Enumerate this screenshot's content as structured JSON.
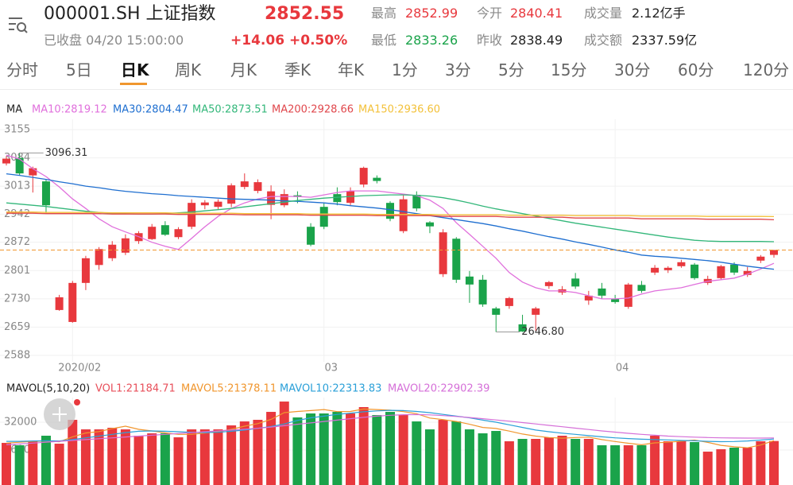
{
  "header": {
    "title": "000001.SH 上证指数",
    "price": "2852.55",
    "status": "已收盘 04/20 15:00:00",
    "change": "+14.06",
    "change_pct": "+0.50%",
    "stats": [
      {
        "label": "最高",
        "value": "2852.99"
      },
      {
        "label": "今开",
        "value": "2840.41"
      },
      {
        "label": "成交量",
        "value": "2.12亿手"
      },
      {
        "label": "最低",
        "value": "2833.26"
      },
      {
        "label": "昨收",
        "value": "2838.49"
      },
      {
        "label": "成交额",
        "value": "2337.59亿"
      }
    ]
  },
  "tabs": [
    {
      "label": "分时"
    },
    {
      "label": "5日"
    },
    {
      "label": "日K",
      "active": true
    },
    {
      "label": "周K"
    },
    {
      "label": "月K"
    },
    {
      "label": "季K"
    },
    {
      "label": "年K"
    },
    {
      "label": "1分"
    },
    {
      "label": "3分"
    },
    {
      "label": "5分"
    },
    {
      "label": "15分"
    },
    {
      "label": "30分"
    },
    {
      "label": "60分"
    },
    {
      "label": "120分"
    }
  ],
  "chart_data": [
    {
      "type": "candlestick",
      "legend_title": "MA",
      "categories": [
        null,
        null,
        null,
        null,
        null,
        "2020/02",
        null,
        null,
        null,
        null,
        null,
        null,
        null,
        null,
        null,
        null,
        null,
        null,
        null,
        null,
        null,
        null,
        null,
        null,
        "03",
        null,
        null,
        null,
        null,
        null,
        null,
        null,
        null,
        null,
        null,
        null,
        null,
        null,
        null,
        null,
        null,
        null,
        null,
        null,
        null,
        null,
        "04",
        null,
        null,
        null,
        null,
        null,
        null,
        null,
        null,
        null,
        null,
        null,
        null
      ],
      "open": [
        3070,
        3084,
        3040,
        3025,
        2702,
        2672,
        2770,
        2815,
        2832,
        2846,
        2875,
        2880,
        2915,
        2885,
        2911,
        2965,
        2961,
        2969,
        3011,
        3001,
        2966,
        2965,
        2990,
        2911,
        2961,
        2993,
        2971,
        3017,
        3034,
        2971,
        2900,
        2991,
        2922,
        2792,
        2881,
        2786,
        2778,
        2706,
        2712,
        2666,
        2690,
        2762,
        2746,
        2781,
        2726,
        2756,
        2730,
        2710,
        2765,
        2796,
        2802,
        2812,
        2816,
        2770,
        2782,
        2816,
        2790,
        2826,
        2840.41
      ],
      "high": [
        3088,
        3096.31,
        3062,
        3030,
        2740,
        2775,
        2838,
        2860,
        2875,
        2892,
        2900,
        2918,
        2925,
        2910,
        2980,
        2978,
        2980,
        3020,
        3045,
        3030,
        3015,
        3005,
        3000,
        2920,
        2970,
        3010,
        3010,
        3062,
        3040,
        2975,
        2990,
        3000,
        2925,
        2905,
        2885,
        2800,
        2790,
        2710,
        2735,
        2690,
        2710,
        2775,
        2762,
        2795,
        2750,
        2770,
        2740,
        2770,
        2775,
        2815,
        2812,
        2828,
        2820,
        2788,
        2815,
        2822,
        2810,
        2840,
        2852.99
      ],
      "low": [
        3065,
        3040,
        2997,
        2945,
        2700,
        2670,
        2752,
        2803,
        2825,
        2840,
        2868,
        2878,
        2888,
        2880,
        2905,
        2955,
        2955,
        2960,
        3005,
        2995,
        2930,
        2960,
        2970,
        2862,
        2905,
        2965,
        2965,
        3010,
        3020,
        2925,
        2895,
        2950,
        2895,
        2785,
        2770,
        2720,
        2710,
        2646.8,
        2705,
        2647,
        2650,
        2755,
        2740,
        2755,
        2715,
        2730,
        2718,
        2705,
        2745,
        2790,
        2795,
        2808,
        2778,
        2765,
        2778,
        2790,
        2785,
        2820,
        2833.26
      ],
      "close": [
        3082,
        3045,
        3058,
        2965,
        2734,
        2770,
        2832,
        2855,
        2866,
        2882,
        2895,
        2911,
        2891,
        2905,
        2971,
        2972,
        2974,
        3015,
        3025,
        3023,
        3000,
        2993,
        2986,
        2866,
        2911,
        2973,
        3001,
        3059,
        3026,
        2931,
        2980,
        2957,
        2912,
        2897,
        2778,
        2766,
        2716,
        2690,
        2732,
        2648,
        2706,
        2772,
        2754,
        2761,
        2738,
        2738,
        2722,
        2766,
        2750,
        2808,
        2808,
        2822,
        2782,
        2780,
        2812,
        2796,
        2800,
        2836,
        2852.55
      ],
      "up_color": "#e8383d",
      "down_color": "#1aa34a",
      "last_price_color": "#f0962e",
      "ylim": [
        2588,
        3155
      ],
      "yticks": [
        2588,
        2659,
        2730,
        2801,
        2872,
        2942,
        3013,
        3084,
        3155
      ],
      "grid": true,
      "series": [
        {
          "name": "MA10:2819.12",
          "color": "#e070dc",
          "values": [
            3091,
            3081,
            3057,
            3037,
            3011,
            2981,
            2957,
            2931,
            2911,
            2898,
            2886,
            2872,
            2862,
            2854,
            2882,
            2911,
            2937,
            2957,
            2971,
            2981,
            2987,
            2987,
            2987,
            2985,
            2991,
            2997,
            3001,
            3001,
            3001,
            2997,
            2993,
            2989,
            2978,
            2957,
            2921,
            2892,
            2862,
            2832,
            2796,
            2772,
            2758,
            2750,
            2750,
            2746,
            2738,
            2730,
            2730,
            2732,
            2742,
            2750,
            2754,
            2758,
            2766,
            2774,
            2778,
            2782,
            2792,
            2805,
            2819.12
          ]
        },
        {
          "name": "MA30:2804.47",
          "color": "#1f6fd0",
          "values": [
            3044,
            3040,
            3035,
            3030,
            3024,
            3019,
            3013,
            3009,
            3004,
            3000,
            2997,
            2994,
            2992,
            2989,
            2987,
            2985,
            2983,
            2981,
            2980,
            2979,
            2978,
            2976,
            2975,
            2973,
            2971,
            2968,
            2964,
            2961,
            2958,
            2954,
            2949,
            2944,
            2939,
            2934,
            2929,
            2924,
            2919,
            2913,
            2906,
            2900,
            2893,
            2886,
            2880,
            2873,
            2867,
            2860,
            2853,
            2847,
            2840,
            2837,
            2835,
            2832,
            2829,
            2826,
            2822,
            2817,
            2812,
            2808,
            2804.47
          ]
        },
        {
          "name": "MA50:2873.51",
          "color": "#33b77a",
          "values": [
            2971,
            2968,
            2965,
            2962,
            2958,
            2954,
            2950,
            2947,
            2945,
            2944,
            2943,
            2943,
            2944,
            2946,
            2948,
            2951,
            2954,
            2957,
            2961,
            2965,
            2969,
            2973,
            2977,
            2980,
            2983,
            2985,
            2987,
            2989,
            2990,
            2991,
            2991,
            2990,
            2988,
            2984,
            2978,
            2971,
            2963,
            2956,
            2950,
            2944,
            2938,
            2932,
            2926,
            2920,
            2915,
            2910,
            2905,
            2900,
            2895,
            2890,
            2885,
            2881,
            2877,
            2875,
            2874,
            2874,
            2874,
            2874,
            2873.51
          ]
        },
        {
          "name": "MA200:2928.66",
          "color": "#e0474c",
          "values": [
            2945,
            2945,
            2945,
            2944,
            2944,
            2944,
            2944,
            2944,
            2943,
            2943,
            2943,
            2943,
            2943,
            2942,
            2942,
            2942,
            2942,
            2942,
            2941,
            2941,
            2941,
            2941,
            2941,
            2940,
            2940,
            2940,
            2940,
            2940,
            2939,
            2939,
            2939,
            2939,
            2939,
            2937,
            2937,
            2937,
            2937,
            2937,
            2935,
            2935,
            2935,
            2935,
            2935,
            2933,
            2933,
            2933,
            2933,
            2933,
            2931,
            2931,
            2931,
            2931,
            2931,
            2930,
            2930,
            2930,
            2930,
            2930,
            2928.66
          ]
        },
        {
          "name": "MA150:2936.60",
          "color": "#f3c13a",
          "values": [
            2948,
            2948,
            2948,
            2947,
            2947,
            2947,
            2947,
            2947,
            2946,
            2946,
            2946,
            2946,
            2946,
            2945,
            2945,
            2945,
            2945,
            2945,
            2944,
            2944,
            2944,
            2944,
            2944,
            2943,
            2943,
            2943,
            2943,
            2943,
            2942,
            2942,
            2942,
            2942,
            2942,
            2941,
            2941,
            2941,
            2941,
            2941,
            2940,
            2940,
            2940,
            2940,
            2940,
            2939,
            2939,
            2939,
            2939,
            2939,
            2938,
            2938,
            2938,
            2938,
            2938,
            2937,
            2937,
            2937,
            2937,
            2937,
            2936.6
          ]
        }
      ],
      "annotations": [
        {
          "value": 3096.31,
          "label": "3096.31"
        },
        {
          "value": 2646.8,
          "label": "2646.80"
        }
      ]
    },
    {
      "type": "bar",
      "legend_title": "MAVOL(5,10,20)",
      "ylim": [
        0,
        46000
      ],
      "yticks": [
        16000,
        32000
      ],
      "series": [
        {
          "name": "VOL1:21184.71",
          "type": "bar",
          "color": "#e8505b",
          "values": [
            20100,
            18740,
            21030,
            24230,
            19650,
            33370,
            27880,
            27880,
            28800,
            27880,
            24230,
            25600,
            25600,
            23310,
            27880,
            27880,
            27880,
            30170,
            32450,
            33370,
            37940,
            43880,
            34740,
            37030,
            37030,
            37940,
            37030,
            40690,
            36110,
            37940,
            36110,
            32450,
            27880,
            33370,
            32450,
            27880,
            25600,
            26970,
            21030,
            22400,
            22400,
            23310,
            24230,
            22400,
            22400,
            18740,
            18740,
            18740,
            18740,
            24230,
            21030,
            21030,
            20570,
            15080,
            16460,
            17370,
            17370,
            21030,
            21184.71
          ]
        },
        {
          "name": "MAVOL5:21378.11",
          "type": "line",
          "color": "#f0962e",
          "values": [
            20000,
            20500,
            21000,
            21200,
            20700,
            23600,
            25800,
            26600,
            28300,
            29700,
            27900,
            27000,
            25900,
            25000,
            25000,
            25800,
            26600,
            27900,
            29700,
            31200,
            33600,
            37500,
            38200,
            38700,
            39300,
            38100,
            38200,
            39600,
            39300,
            38900,
            38100,
            36900,
            34400,
            33500,
            32400,
            30800,
            29000,
            28400,
            26900,
            25200,
            24000,
            23200,
            22800,
            23200,
            23400,
            22000,
            20900,
            19900,
            19000,
            20100,
            20500,
            21100,
            21700,
            20400,
            18700,
            17900,
            17300,
            18900,
            21378.11
          ]
        },
        {
          "name": "MAVOL10:22313.83",
          "type": "line",
          "color": "#2ba0d8",
          "values": [
            21000,
            21000,
            21200,
            21300,
            21200,
            22000,
            23000,
            24000,
            25000,
            26000,
            26800,
            27000,
            26800,
            26500,
            26200,
            26000,
            26200,
            26800,
            27500,
            28500,
            29500,
            31000,
            33000,
            34500,
            35500,
            36500,
            37200,
            38000,
            38500,
            38800,
            38700,
            38200,
            37500,
            36500,
            35500,
            34500,
            33200,
            32000,
            30500,
            29000,
            27500,
            26500,
            25700,
            25000,
            24300,
            23600,
            23000,
            22600,
            22200,
            22000,
            21800,
            21500,
            21300,
            21000,
            20800,
            20900,
            21200,
            21700,
            22313.83
          ]
        },
        {
          "name": "MAVOL20:22902.39",
          "type": "line",
          "color": "#d56fd8",
          "values": [
            19000,
            19500,
            20000,
            20500,
            21000,
            21500,
            22000,
            22500,
            23000,
            23500,
            24000,
            24500,
            25000,
            25500,
            26000,
            26500,
            27000,
            27500,
            28000,
            28500,
            29200,
            30000,
            30800,
            31600,
            32400,
            33200,
            34000,
            34800,
            35500,
            36000,
            36300,
            36400,
            36200,
            35800,
            35300,
            34700,
            34000,
            33300,
            32600,
            31800,
            31000,
            30200,
            29400,
            28600,
            27800,
            27000,
            26300,
            25600,
            25000,
            24500,
            24000,
            23700,
            23400,
            23200,
            23000,
            22900,
            22850,
            22870,
            22902.39
          ]
        }
      ]
    }
  ]
}
